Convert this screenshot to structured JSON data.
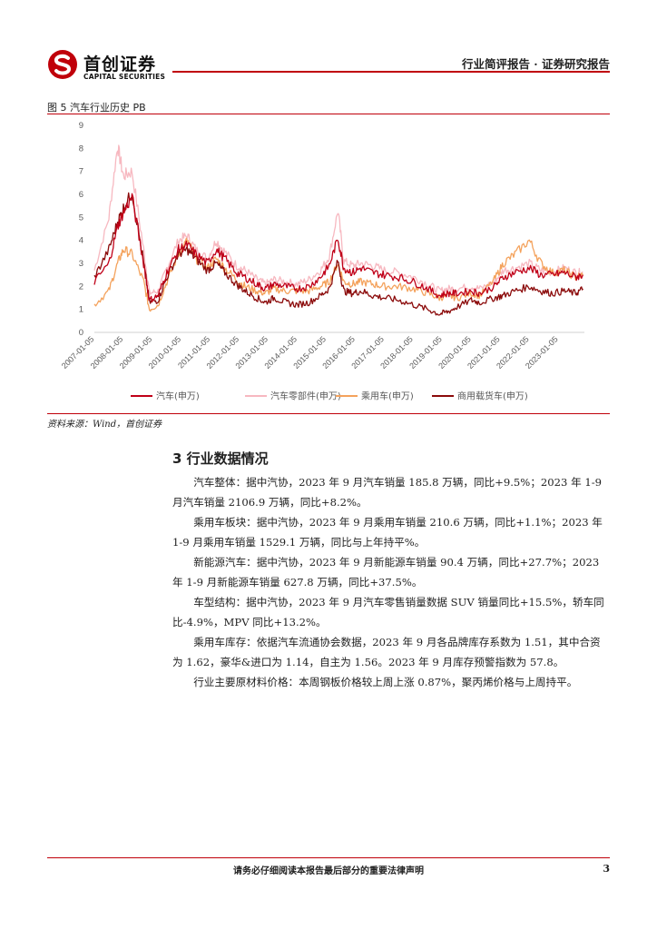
{
  "header": {
    "brand_cn": "首创证券",
    "brand_en": "CAPITAL SECURITIES",
    "report_type": "行业简评报告 · 证券研究报告"
  },
  "colors": {
    "accent": "#c0000a",
    "series_auto": "#c00018",
    "series_parts": "#f7b8c0",
    "series_passenger": "#f4a25c",
    "series_commercial": "#8b0a0a"
  },
  "figure": {
    "caption": "图 5  汽车行业历史 PB",
    "source": "资料来源：Wind，首创证券"
  },
  "chart_data": {
    "type": "line",
    "title": "",
    "xlabel": "",
    "ylabel": "",
    "ylim": [
      0,
      9
    ],
    "yticks": [
      "0",
      "1",
      "2",
      "3",
      "4",
      "5",
      "6",
      "7",
      "8",
      "9"
    ],
    "categories": [
      "2007-01-05",
      "2008-01-05",
      "2009-01-05",
      "2010-01-05",
      "2011-01-05",
      "2012-01-05",
      "2013-01-05",
      "2014-01-05",
      "2015-01-05",
      "2016-01-05",
      "2017-01-05",
      "2018-01-05",
      "2019-01-05",
      "2020-01-05",
      "2021-01-05",
      "2022-01-05",
      "2023-01-05"
    ],
    "legend_position": "bottom",
    "x": [
      2007.0,
      2007.5,
      2007.8,
      2008.0,
      2008.3,
      2008.7,
      2008.9,
      2009.2,
      2009.5,
      2009.9,
      2010.2,
      2010.5,
      2010.9,
      2011.2,
      2011.5,
      2011.9,
      2012.2,
      2012.6,
      2012.9,
      2013.2,
      2013.6,
      2014.0,
      2014.4,
      2014.8,
      2015.1,
      2015.4,
      2015.6,
      2015.9,
      2016.2,
      2016.6,
      2017.0,
      2017.5,
      2018.0,
      2018.5,
      2018.9,
      2019.2,
      2019.5,
      2020.0,
      2020.3,
      2020.8,
      2021.1,
      2021.5,
      2022.0,
      2022.4,
      2022.8,
      2023.2,
      2023.6,
      2023.85
    ],
    "series": [
      {
        "name": "汽车(申万)",
        "values": [
          2.2,
          3.0,
          4.6,
          5.2,
          5.9,
          3.0,
          1.4,
          1.6,
          2.6,
          3.6,
          3.8,
          3.4,
          3.0,
          3.6,
          3.2,
          2.6,
          2.4,
          2.1,
          1.9,
          2.1,
          2.0,
          1.9,
          2.0,
          2.4,
          2.9,
          4.1,
          2.8,
          2.6,
          2.8,
          2.6,
          2.5,
          2.4,
          2.2,
          1.9,
          1.6,
          1.7,
          1.7,
          1.8,
          1.7,
          2.0,
          2.4,
          2.6,
          2.8,
          2.5,
          2.5,
          2.6,
          2.4,
          2.5
        ]
      },
      {
        "name": "汽车零部件(申万)",
        "values": [
          2.7,
          5.0,
          8.1,
          6.8,
          7.0,
          3.6,
          1.7,
          1.8,
          2.8,
          4.0,
          4.2,
          3.6,
          3.2,
          4.0,
          3.5,
          2.9,
          2.7,
          2.3,
          2.1,
          2.3,
          2.2,
          2.1,
          2.3,
          2.7,
          3.3,
          5.3,
          3.1,
          2.9,
          3.0,
          2.9,
          2.7,
          2.6,
          2.4,
          2.1,
          1.8,
          1.9,
          1.9,
          2.0,
          1.9,
          2.2,
          2.7,
          2.8,
          3.0,
          2.7,
          2.6,
          2.8,
          2.6,
          2.6
        ]
      },
      {
        "name": "乘用车(申万)",
        "values": [
          1.2,
          1.8,
          3.0,
          3.6,
          3.4,
          2.2,
          1.0,
          1.2,
          2.2,
          3.4,
          4.0,
          3.2,
          2.8,
          3.2,
          2.8,
          2.3,
          2.0,
          1.8,
          1.7,
          1.9,
          1.8,
          1.8,
          1.8,
          2.0,
          2.2,
          3.0,
          2.2,
          2.1,
          2.2,
          2.1,
          2.0,
          2.0,
          1.9,
          1.7,
          1.5,
          1.6,
          1.5,
          1.7,
          1.6,
          2.3,
          3.0,
          3.4,
          4.0,
          3.0,
          2.6,
          2.7,
          2.4,
          2.5
        ]
      },
      {
        "name": "商用载货车(申万)",
        "values": [
          2.4,
          3.6,
          4.8,
          5.4,
          6.1,
          3.0,
          1.3,
          1.4,
          2.4,
          3.4,
          3.6,
          3.2,
          2.7,
          3.0,
          2.6,
          2.1,
          1.8,
          1.5,
          1.3,
          1.5,
          1.3,
          1.2,
          1.3,
          1.6,
          1.9,
          3.1,
          1.8,
          1.7,
          1.8,
          1.6,
          1.5,
          1.4,
          1.2,
          1.0,
          0.8,
          0.9,
          1.1,
          1.4,
          1.3,
          1.5,
          1.6,
          1.8,
          2.0,
          1.8,
          1.7,
          1.8,
          1.7,
          1.9
        ]
      }
    ]
  },
  "section": {
    "title": "3  行业数据情况"
  },
  "paragraphs": [
    "汽车整体：据中汽协，2023 年 9 月汽车销量 185.8 万辆，同比+9.5%；2023 年 1-9 月汽车销量 2106.9 万辆，同比+8.2%。",
    "乘用车板块：据中汽协，2023 年 9 月乘用车销量 210.6 万辆，同比+1.1%；2023 年 1-9 月乘用车销量 1529.1 万辆，同比与上年持平%。",
    "新能源汽车：据中汽协，2023 年 9 月新能源车销量 90.4 万辆，同比+27.7%；2023 年 1-9 月新能源车销量 627.8 万辆，同比+37.5%。",
    "车型结构：据中汽协，2023 年 9 月汽车零售销量数据 SUV 销量同比+15.5%，轿车同比-4.9%，MPV 同比+13.2%。",
    "乘用车库存：依据汽车流通协会数据，2023 年 9 月各品牌库存系数为 1.51，其中合资为 1.62，豪华&进口为 1.14，自主为 1.56。2023 年 9 月库存预警指数为 57.8。",
    "行业主要原材料价格：本周钢板价格较上周上涨 0.87%，聚丙烯价格与上周持平。"
  ],
  "footer": {
    "notice": "请务必仔细阅读本报告最后部分的重要法律声明",
    "page": "3"
  }
}
